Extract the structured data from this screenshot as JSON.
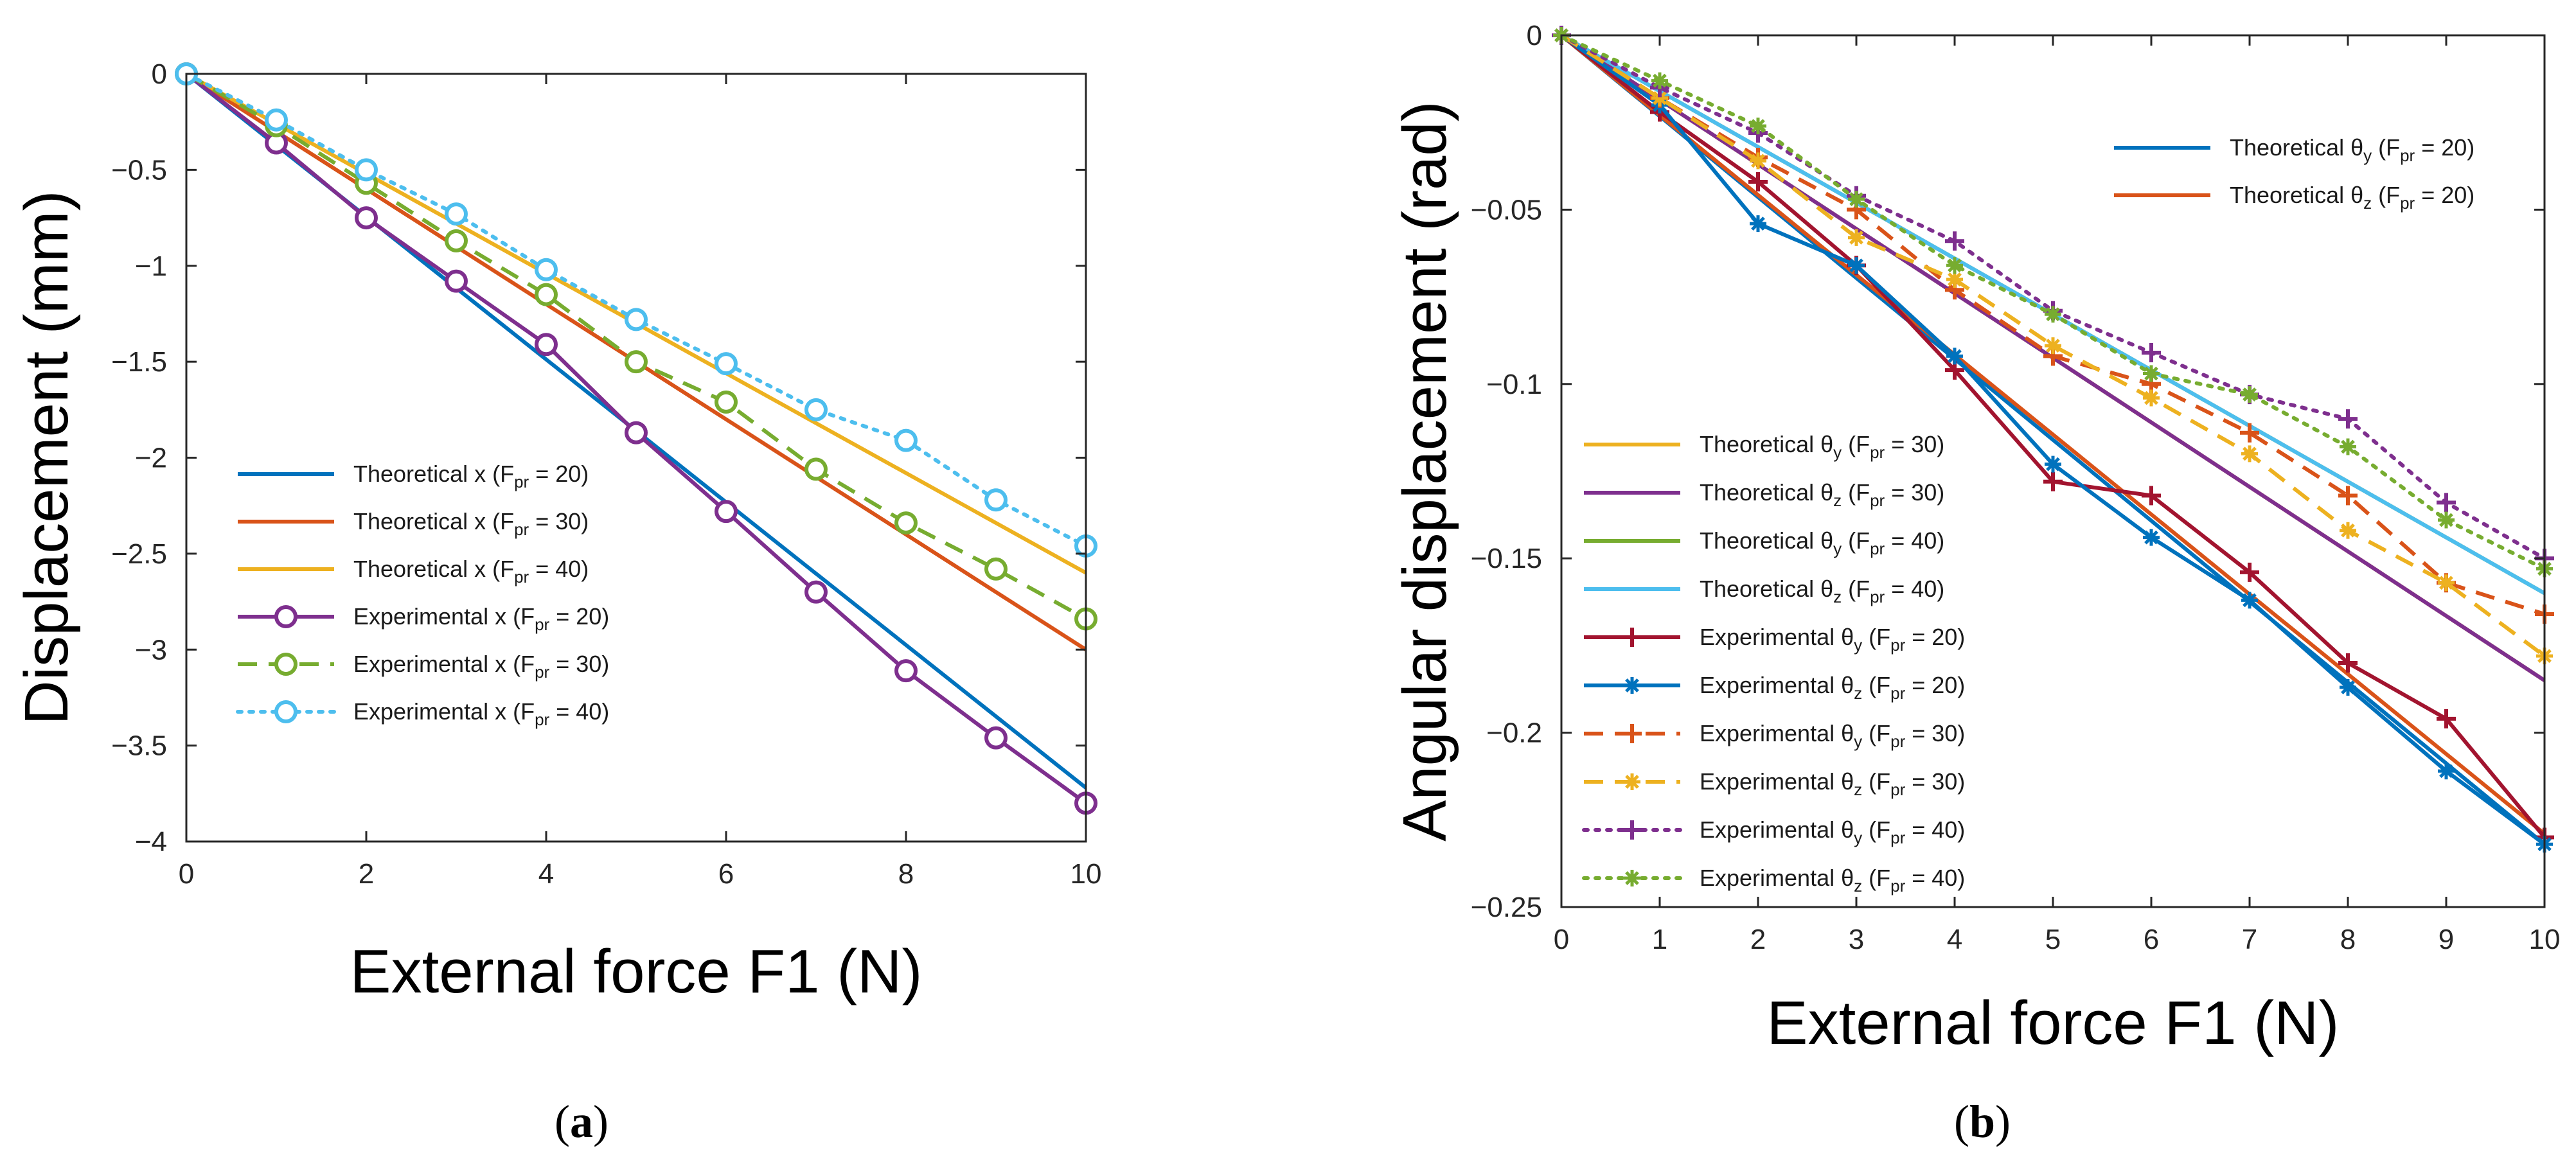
{
  "colors": {
    "blue": "#0072BD",
    "orange": "#D95319",
    "yellow": "#EDB120",
    "purple": "#7E2F8E",
    "green": "#77AC30",
    "cyan": "#4DBEEE",
    "darkred": "#A2142F",
    "white": "#ffffff"
  },
  "panels": {
    "a": {
      "label_open": "(",
      "letter": "a",
      "label_close": ")"
    },
    "b": {
      "label_open": "(",
      "letter": "b",
      "label_close": ")"
    }
  },
  "chart_data": [
    {
      "id": "a",
      "type": "line",
      "title": "",
      "xlabel": "External force F1 (N)",
      "ylabel": "Displacement (mm)",
      "xlim": [
        0,
        10
      ],
      "ylim": [
        -4,
        0
      ],
      "xticks": [
        0,
        2,
        4,
        6,
        8,
        10
      ],
      "xtick_labels": [
        "0",
        "2",
        "4",
        "6",
        "8",
        "10"
      ],
      "yticks": [
        0,
        -0.5,
        -1,
        -1.5,
        -2,
        -2.5,
        -3,
        -3.5,
        -4
      ],
      "ytick_labels": [
        "0",
        "-0.5",
        "-1",
        "-1.5",
        "-2",
        "-2.5",
        "-3",
        "-3.5",
        "-4"
      ],
      "legend_position": "center-left",
      "series": [
        {
          "name": "Theoretical x",
          "sub_label": "pr",
          "suffix": " = 20)",
          "prefix": "Theoretical x (F",
          "color": "#0072BD",
          "dash": "solid",
          "marker": "none",
          "x": [
            0,
            10
          ],
          "y": [
            0,
            -3.72
          ]
        },
        {
          "name": "Theoretical x",
          "sub_label": "pr",
          "suffix": " = 30)",
          "prefix": "Theoretical x (F",
          "color": "#D95319",
          "dash": "solid",
          "marker": "none",
          "x": [
            0,
            10
          ],
          "y": [
            0,
            -3.0
          ]
        },
        {
          "name": "Theoretical x",
          "sub_label": "pr",
          "suffix": " = 40)",
          "prefix": "Theoretical x (F",
          "color": "#EDB120",
          "dash": "solid",
          "marker": "none",
          "x": [
            0,
            10
          ],
          "y": [
            0,
            -2.6
          ]
        },
        {
          "name": "Experimental x",
          "sub_label": "pr",
          "suffix": " = 20)",
          "prefix": "Experimental x (F",
          "color": "#7E2F8E",
          "dash": "solid",
          "marker": "circle",
          "x": [
            0,
            1,
            2,
            3,
            4,
            5,
            6,
            7,
            8,
            9,
            10
          ],
          "y": [
            0,
            -0.36,
            -0.75,
            -1.08,
            -1.41,
            -1.87,
            -2.28,
            -2.7,
            -3.11,
            -3.46,
            -3.8
          ]
        },
        {
          "name": "Experimental x",
          "sub_label": "pr",
          "suffix": " = 30)",
          "prefix": "Experimental x (F",
          "color": "#77AC30",
          "dash": "dashed",
          "marker": "circle",
          "x": [
            0,
            1,
            2,
            3,
            4,
            5,
            6,
            7,
            8,
            9,
            10
          ],
          "y": [
            0,
            -0.27,
            -0.57,
            -0.87,
            -1.15,
            -1.5,
            -1.71,
            -2.06,
            -2.34,
            -2.58,
            -2.84
          ]
        },
        {
          "name": "Experimental x",
          "sub_label": "pr",
          "suffix": " = 40)",
          "prefix": "Experimental x (F",
          "color": "#4DBEEE",
          "dash": "dotted",
          "marker": "circle",
          "x": [
            0,
            1,
            2,
            3,
            4,
            5,
            6,
            7,
            8,
            9,
            10
          ],
          "y": [
            0,
            -0.24,
            -0.5,
            -0.73,
            -1.02,
            -1.28,
            -1.51,
            -1.75,
            -1.91,
            -2.22,
            -2.46
          ]
        }
      ]
    },
    {
      "id": "b",
      "type": "line",
      "title": "",
      "xlabel": "External force F1 (N)",
      "ylabel": "Angular displacement (rad)",
      "xlim": [
        0,
        10
      ],
      "ylim": [
        -0.25,
        0
      ],
      "xticks": [
        0,
        1,
        2,
        3,
        4,
        5,
        6,
        7,
        8,
        9,
        10
      ],
      "xtick_labels": [
        "0",
        "1",
        "2",
        "3",
        "4",
        "5",
        "6",
        "7",
        "8",
        "9",
        "10"
      ],
      "yticks": [
        0,
        -0.05,
        -0.1,
        -0.15,
        -0.2,
        -0.25
      ],
      "ytick_labels": [
        "0",
        "-0.05",
        "-0.1",
        "-0.15",
        "-0.2",
        "-0.25"
      ],
      "legend_position": "top-right and bottom-left",
      "series": [
        {
          "prefix": "Theoretical θ",
          "axis_sub": "y",
          "suffix": " = 20)",
          "color": "#0072BD",
          "dash": "solid",
          "marker": "none",
          "x": [
            0,
            10
          ],
          "y": [
            0,
            -0.232
          ]
        },
        {
          "prefix": "Theoretical θ",
          "axis_sub": "z",
          "suffix": " = 20)",
          "color": "#D95319",
          "dash": "solid",
          "marker": "none",
          "x": [
            0,
            10
          ],
          "y": [
            0,
            -0.229
          ]
        },
        {
          "prefix": "Theoretical θ",
          "axis_sub": "y",
          "suffix": " = 30)",
          "color": "#EDB120",
          "dash": "solid",
          "marker": "none",
          "x": [
            0,
            10
          ],
          "y": [
            0,
            -0.185
          ]
        },
        {
          "prefix": "Theoretical θ",
          "axis_sub": "z",
          "suffix": " = 30)",
          "color": "#7E2F8E",
          "dash": "solid",
          "marker": "none",
          "x": [
            0,
            10
          ],
          "y": [
            0,
            -0.185
          ]
        },
        {
          "prefix": "Theoretical θ",
          "axis_sub": "y",
          "suffix": " = 40)",
          "color": "#77AC30",
          "dash": "solid",
          "marker": "none",
          "x": [
            0,
            10
          ],
          "y": [
            0,
            -0.16
          ]
        },
        {
          "prefix": "Theoretical θ",
          "axis_sub": "z",
          "suffix": " = 40)",
          "color": "#4DBEEE",
          "dash": "solid",
          "marker": "none",
          "x": [
            0,
            10
          ],
          "y": [
            0,
            -0.16
          ]
        },
        {
          "prefix": "Experimental θ",
          "axis_sub": "y",
          "suffix": " = 20)",
          "color": "#A2142F",
          "dash": "solid",
          "marker": "plus",
          "x": [
            0,
            1,
            2,
            3,
            4,
            5,
            6,
            7,
            8,
            9,
            10
          ],
          "y": [
            0,
            -0.022,
            -0.042,
            -0.066,
            -0.096,
            -0.128,
            -0.132,
            -0.154,
            -0.18,
            -0.196,
            -0.23
          ]
        },
        {
          "prefix": "Experimental θ",
          "axis_sub": "z",
          "suffix": " = 20)",
          "color": "#0072BD",
          "dash": "solid",
          "marker": "star",
          "x": [
            0,
            1,
            2,
            3,
            4,
            5,
            6,
            7,
            8,
            9,
            10
          ],
          "y": [
            0,
            -0.02,
            -0.054,
            -0.066,
            -0.092,
            -0.123,
            -0.144,
            -0.162,
            -0.187,
            -0.211,
            -0.232
          ]
        },
        {
          "prefix": "Experimental θ",
          "axis_sub": "y",
          "suffix": " = 30)",
          "color": "#D95319",
          "dash": "dashed",
          "marker": "plus",
          "x": [
            0,
            1,
            2,
            3,
            4,
            5,
            6,
            7,
            8,
            9,
            10
          ],
          "y": [
            0,
            -0.018,
            -0.035,
            -0.05,
            -0.073,
            -0.092,
            -0.1,
            -0.114,
            -0.132,
            -0.157,
            -0.166
          ]
        },
        {
          "prefix": "Experimental θ",
          "axis_sub": "z",
          "suffix": " = 30)",
          "color": "#EDB120",
          "dash": "dashed",
          "marker": "star",
          "x": [
            0,
            1,
            2,
            3,
            4,
            5,
            6,
            7,
            8,
            9,
            10
          ],
          "y": [
            0,
            -0.018,
            -0.036,
            -0.058,
            -0.07,
            -0.089,
            -0.104,
            -0.12,
            -0.142,
            -0.157,
            -0.178
          ]
        },
        {
          "prefix": "Experimental θ",
          "axis_sub": "y",
          "suffix": " = 40)",
          "color": "#7E2F8E",
          "dash": "dotted",
          "marker": "plus",
          "x": [
            0,
            1,
            2,
            3,
            4,
            5,
            6,
            7,
            8,
            9,
            10
          ],
          "y": [
            0,
            -0.015,
            -0.028,
            -0.046,
            -0.059,
            -0.079,
            -0.091,
            -0.103,
            -0.11,
            -0.134,
            -0.15
          ]
        },
        {
          "prefix": "Experimental θ",
          "axis_sub": "z",
          "suffix": " = 40)",
          "color": "#77AC30",
          "dash": "dotted",
          "marker": "star",
          "x": [
            0,
            1,
            2,
            3,
            4,
            5,
            6,
            7,
            8,
            9,
            10
          ],
          "y": [
            0,
            -0.013,
            -0.026,
            -0.047,
            -0.066,
            -0.08,
            -0.097,
            -0.103,
            -0.118,
            -0.139,
            -0.153
          ]
        }
      ]
    }
  ]
}
